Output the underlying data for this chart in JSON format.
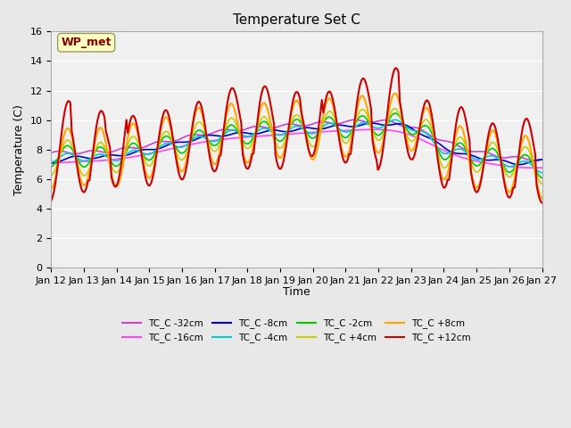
{
  "title": "Temperature Set C",
  "xlabel": "Time",
  "ylabel": "Temperature (C)",
  "ylim": [
    0,
    16
  ],
  "yticks": [
    0,
    2,
    4,
    6,
    8,
    10,
    12,
    14,
    16
  ],
  "x_labels": [
    "Jan 12",
    "Jan 13",
    "Jan 14",
    "Jan 15",
    "Jan 16",
    "Jan 17",
    "Jan 18",
    "Jan 19",
    "Jan 20",
    "Jan 21",
    "Jan 22",
    "Jan 23",
    "Jan 24",
    "Jan 25",
    "Jan 26",
    "Jan 27"
  ],
  "annotation_text": "WP_met",
  "annotation_color": "#8B0000",
  "annotation_bg": "#FFFFC0",
  "bg_color": "#E8E8E8",
  "plot_bg": "#F0F0F0",
  "series": [
    {
      "label": "TC_C -32cm",
      "color": "#CC44CC",
      "lw": 1.2
    },
    {
      "label": "TC_C -16cm",
      "color": "#FF44FF",
      "lw": 1.2
    },
    {
      "label": "TC_C -8cm",
      "color": "#0000CC",
      "lw": 1.2
    },
    {
      "label": "TC_C -4cm",
      "color": "#00CCCC",
      "lw": 1.2
    },
    {
      "label": "TC_C -2cm",
      "color": "#00CC00",
      "lw": 1.2
    },
    {
      "label": "TC_C +4cm",
      "color": "#CCCC00",
      "lw": 1.2
    },
    {
      "label": "TC_C +8cm",
      "color": "#FFA500",
      "lw": 1.5
    },
    {
      "label": "TC_C +12cm",
      "color": "#CC0000",
      "lw": 1.5
    }
  ]
}
